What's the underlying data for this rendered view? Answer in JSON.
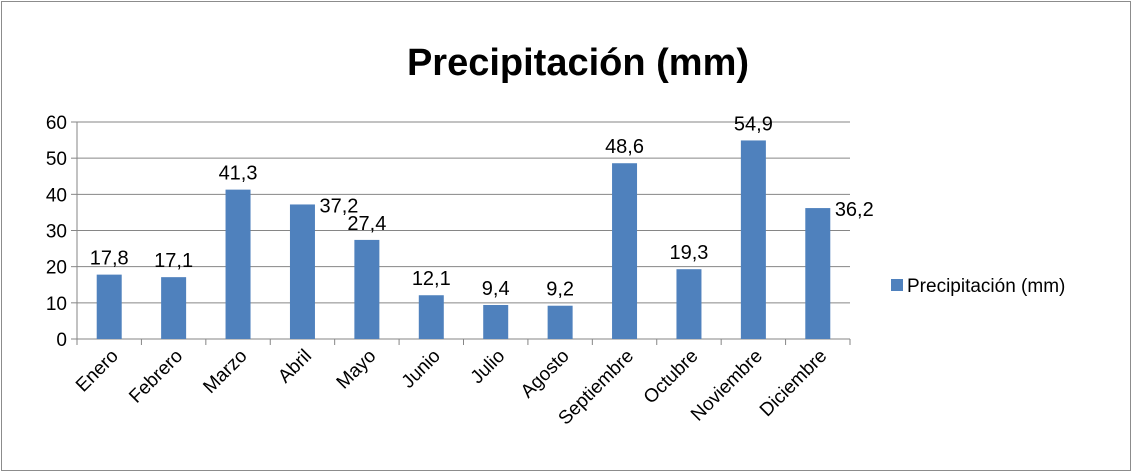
{
  "chart_data": {
    "type": "bar",
    "title": "Precipitación (mm)",
    "xlabel": "",
    "ylabel": "",
    "categories": [
      "Enero",
      "Febrero",
      "Marzo",
      "Abril",
      "Mayo",
      "Junio",
      "Julio",
      "Agosto",
      "Septiembre",
      "Octubre",
      "Noviembre",
      "Diciembre"
    ],
    "series": [
      {
        "name": "Precipitación (mm)",
        "values": [
          17.8,
          17.1,
          41.3,
          37.2,
          27.4,
          12.1,
          9.4,
          9.2,
          48.6,
          19.3,
          54.9,
          36.2
        ],
        "value_labels": [
          "17,8",
          "17,1",
          "41,3",
          "37,2",
          "27,4",
          "12,1",
          "9,4",
          "9,2",
          "48,6",
          "19,3",
          "54,9",
          "36,2"
        ],
        "color": "#4F81BD"
      }
    ],
    "ylim": [
      0,
      60
    ],
    "yticks": [
      "0",
      "10",
      "20",
      "30",
      "40",
      "50",
      "60"
    ],
    "grid": true,
    "legend_position": "right",
    "colors": {
      "bar": "#4F81BD",
      "grid": "#868686",
      "axis": "#868686"
    }
  }
}
